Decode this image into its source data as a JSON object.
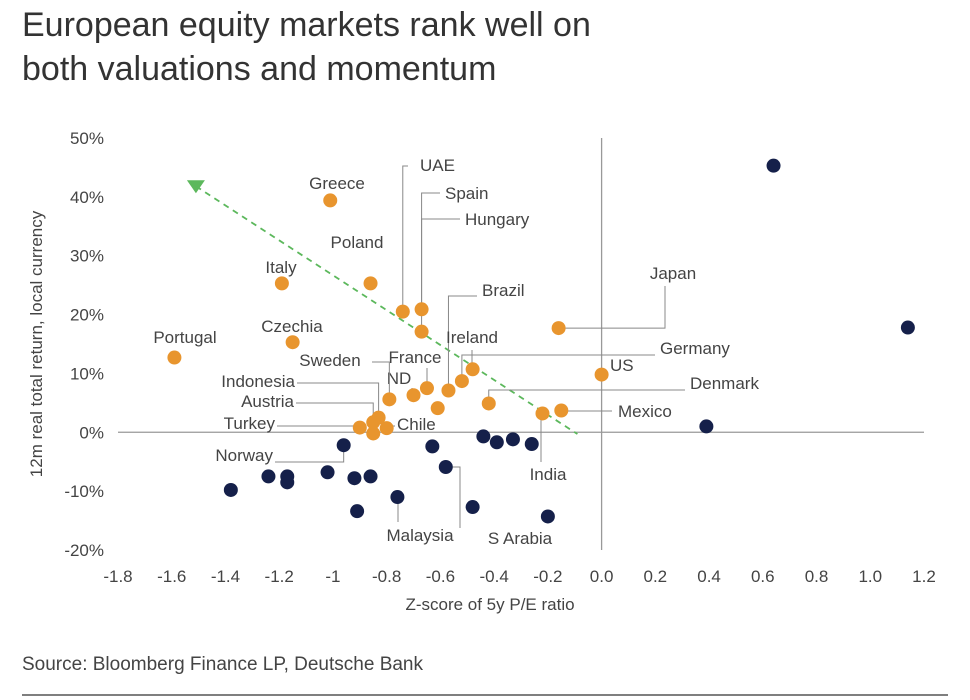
{
  "chart_data": {
    "type": "scatter",
    "title": "European equity markets rank well on both valuations and momentum",
    "x_label": "Z-score of 5y P/E ratio",
    "y_label": "12m real total return, local currency",
    "source": "Source: Bloomberg Finance LP, Deutsche Bank",
    "xlim": [
      -1.8,
      1.2
    ],
    "xticks": [
      -1.8,
      -1.6,
      -1.4,
      -1.2,
      -1,
      -0.8,
      -0.6,
      -0.4,
      -0.2,
      {
        "value": 0,
        "label": "0.0"
      },
      0.2,
      0.4,
      0.6,
      0.8,
      {
        "value": 1,
        "label": "1.0"
      },
      1.2
    ],
    "ylim": [
      -20,
      50
    ],
    "yticks": [
      {
        "value": -20,
        "label": "-20%"
      },
      {
        "value": -10,
        "label": "-10%"
      },
      {
        "value": 0,
        "label": "0%"
      },
      {
        "value": 10,
        "label": "10%"
      },
      {
        "value": 20,
        "label": "20%"
      },
      {
        "value": 30,
        "label": "30%"
      },
      {
        "value": 40,
        "label": "40%"
      },
      {
        "value": 50,
        "label": "50%"
      }
    ],
    "series": [
      {
        "color": "#e8952e",
        "x": [
          -1.59,
          -1.19,
          -1.15,
          -1.01,
          -0.86,
          -0.74,
          -0.67,
          -0.67,
          -0.57,
          -0.48,
          -0.16,
          0.0,
          -0.52,
          -0.42,
          -0.15,
          -0.22,
          -0.65,
          -0.7,
          -0.79,
          -0.83,
          -0.85,
          -0.9,
          -0.8,
          -0.85,
          -0.61
        ],
        "values": [
          12.7,
          25.3,
          15.3,
          39.4,
          25.3,
          20.5,
          20.9,
          17.1,
          7.1,
          10.7,
          17.7,
          9.8,
          8.7,
          4.9,
          3.7,
          3.2,
          7.5,
          6.3,
          5.6,
          2.5,
          1.7,
          0.8,
          0.7,
          -0.2,
          4.1
        ],
        "labels": [
          "Portugal",
          "Italy",
          "Czechia",
          "Greece",
          "Poland",
          "UAE",
          "Spain",
          "Hungary",
          "Brazil",
          "Ireland",
          "Japan",
          "US",
          "Germany",
          "Denmark",
          "Mexico",
          "India",
          "France",
          "ND",
          "Sweden",
          "Indonesia",
          "Austria",
          "Turkey",
          "Chile",
          null,
          null
        ]
      },
      {
        "color": "#15204a",
        "x": [
          0.64,
          1.14,
          0.39,
          -1.38,
          -1.24,
          -1.17,
          -1.17,
          -1.02,
          -0.96,
          -0.92,
          -0.86,
          -0.91,
          -0.76,
          -0.63,
          -0.58,
          -0.48,
          -0.44,
          -0.39,
          -0.33,
          -0.26,
          -0.2
        ],
        "values": [
          45.3,
          17.8,
          1.0,
          -9.8,
          -7.5,
          -7.5,
          -8.5,
          -6.8,
          -2.2,
          -7.8,
          -7.5,
          -13.4,
          -11.0,
          -2.4,
          -5.9,
          -12.7,
          -0.7,
          -1.7,
          -1.2,
          -2.0,
          -14.3
        ],
        "labels": [
          null,
          null,
          null,
          null,
          null,
          null,
          null,
          null,
          "Norway",
          null,
          null,
          null,
          "Malaysia",
          null,
          "S Arabia",
          null,
          null,
          null,
          null,
          null,
          null
        ]
      }
    ],
    "trend_line": {
      "color": "#5cb85c",
      "x": [
        -1.51,
        -0.09
      ],
      "values": [
        41.8,
        -0.3
      ]
    }
  }
}
